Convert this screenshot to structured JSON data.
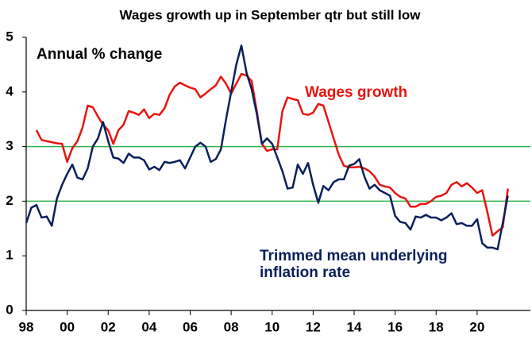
{
  "chart_data": {
    "type": "line",
    "title": "Wages growth up in September qtr but still low",
    "annotation": "Annual % change",
    "xlim": [
      1998,
      2022.6
    ],
    "xticks": [
      {
        "value": 1998,
        "label": "98"
      },
      {
        "value": 2000,
        "label": "00"
      },
      {
        "value": 2002,
        "label": "02"
      },
      {
        "value": 2004,
        "label": "04"
      },
      {
        "value": 2006,
        "label": "06"
      },
      {
        "value": 2008,
        "label": "08"
      },
      {
        "value": 2010,
        "label": "10"
      },
      {
        "value": 2012,
        "label": "12"
      },
      {
        "value": 2014,
        "label": "14"
      },
      {
        "value": 2016,
        "label": "16"
      },
      {
        "value": 2018,
        "label": "18"
      },
      {
        "value": 2020,
        "label": "20"
      }
    ],
    "ylim": [
      0,
      5
    ],
    "yticks": [
      0,
      1,
      2,
      3,
      4,
      5
    ],
    "reference_lines": [
      3,
      2
    ],
    "reference_color": "#2db34a",
    "series": [
      {
        "name": "Wages growth",
        "color": "#e8140f",
        "x": [
          1998.5,
          1998.75,
          1999,
          1999.25,
          1999.5,
          1999.75,
          2000,
          2000.25,
          2000.5,
          2000.75,
          2001,
          2001.25,
          2001.5,
          2001.75,
          2002,
          2002.25,
          2002.5,
          2002.75,
          2003,
          2003.25,
          2003.5,
          2003.75,
          2004,
          2004.25,
          2004.5,
          2004.75,
          2005,
          2005.25,
          2005.5,
          2005.75,
          2006,
          2006.25,
          2006.5,
          2006.75,
          2007,
          2007.25,
          2007.5,
          2007.75,
          2008,
          2008.25,
          2008.5,
          2008.75,
          2009,
          2009.25,
          2009.5,
          2009.75,
          2010,
          2010.25,
          2010.5,
          2010.75,
          2011,
          2011.25,
          2011.5,
          2011.75,
          2012,
          2012.25,
          2012.5,
          2012.75,
          2013,
          2013.25,
          2013.5,
          2013.75,
          2014,
          2014.25,
          2014.5,
          2014.75,
          2015,
          2015.25,
          2015.5,
          2015.75,
          2016,
          2016.25,
          2016.5,
          2016.75,
          2017,
          2017.25,
          2017.5,
          2017.75,
          2018,
          2018.25,
          2018.5,
          2018.75,
          2019,
          2019.25,
          2019.5,
          2019.75,
          2020,
          2020.25,
          2020.5,
          2020.75,
          2021,
          2021.25,
          2021.5
        ],
        "values": [
          3.3,
          3.12,
          3.1,
          3.08,
          3.06,
          3.05,
          2.72,
          2.97,
          3.1,
          3.35,
          3.75,
          3.72,
          3.55,
          3.4,
          3.3,
          3.05,
          3.3,
          3.4,
          3.65,
          3.62,
          3.58,
          3.68,
          3.52,
          3.6,
          3.58,
          3.7,
          3.95,
          4.1,
          4.17,
          4.12,
          4.08,
          4.05,
          3.9,
          3.97,
          4.05,
          4.12,
          4.28,
          4.15,
          3.97,
          4.15,
          4.33,
          4.3,
          4.2,
          3.65,
          3.05,
          2.92,
          2.95,
          2.95,
          3.65,
          3.9,
          3.87,
          3.85,
          3.6,
          3.58,
          3.62,
          3.78,
          3.75,
          3.45,
          3.15,
          2.85,
          2.65,
          2.62,
          2.62,
          2.63,
          2.6,
          2.55,
          2.45,
          2.3,
          2.27,
          2.25,
          2.15,
          2.08,
          2.05,
          1.9,
          1.9,
          1.95,
          1.95,
          2.0,
          2.08,
          2.1,
          2.15,
          2.3,
          2.35,
          2.27,
          2.33,
          2.25,
          2.15,
          2.2,
          1.8,
          1.37,
          1.45,
          1.52,
          2.23
        ]
      },
      {
        "name": "Trimmed mean underlying inflation rate",
        "color": "#0a1f5c",
        "x": [
          1998,
          1998.25,
          1998.5,
          1998.75,
          1999,
          1999.25,
          1999.5,
          1999.75,
          2000,
          2000.25,
          2000.5,
          2000.75,
          2001,
          2001.25,
          2001.5,
          2001.75,
          2002,
          2002.25,
          2002.5,
          2002.75,
          2003,
          2003.25,
          2003.5,
          2003.75,
          2004,
          2004.25,
          2004.5,
          2004.75,
          2005,
          2005.25,
          2005.5,
          2005.75,
          2006,
          2006.25,
          2006.5,
          2006.75,
          2007,
          2007.25,
          2007.5,
          2007.75,
          2008,
          2008.25,
          2008.5,
          2008.75,
          2009,
          2009.25,
          2009.5,
          2009.75,
          2010,
          2010.25,
          2010.5,
          2010.75,
          2011,
          2011.25,
          2011.5,
          2011.75,
          2012,
          2012.25,
          2012.5,
          2012.75,
          2013,
          2013.25,
          2013.5,
          2013.75,
          2014,
          2014.25,
          2014.5,
          2014.75,
          2015,
          2015.25,
          2015.5,
          2015.75,
          2016,
          2016.25,
          2016.5,
          2016.75,
          2017,
          2017.25,
          2017.5,
          2017.75,
          2018,
          2018.25,
          2018.5,
          2018.75,
          2019,
          2019.25,
          2019.5,
          2019.75,
          2020,
          2020.25,
          2020.5,
          2020.75,
          2021,
          2021.25,
          2021.5
        ],
        "values": [
          1.6,
          1.88,
          1.93,
          1.7,
          1.72,
          1.55,
          2.05,
          2.3,
          2.5,
          2.67,
          2.43,
          2.4,
          2.6,
          3.0,
          3.15,
          3.45,
          3.1,
          2.8,
          2.78,
          2.7,
          2.87,
          2.8,
          2.8,
          2.75,
          2.58,
          2.63,
          2.57,
          2.72,
          2.7,
          2.72,
          2.75,
          2.6,
          2.8,
          3.0,
          3.07,
          3.0,
          2.72,
          2.77,
          2.95,
          3.5,
          4.0,
          4.5,
          4.85,
          4.35,
          4.05,
          3.6,
          3.05,
          3.15,
          3.05,
          2.8,
          2.55,
          2.23,
          2.25,
          2.67,
          2.5,
          2.7,
          2.3,
          1.97,
          2.28,
          2.2,
          2.35,
          2.4,
          2.4,
          2.65,
          2.68,
          2.77,
          2.45,
          2.23,
          2.3,
          2.2,
          2.15,
          2.1,
          1.73,
          1.62,
          1.6,
          1.48,
          1.72,
          1.7,
          1.75,
          1.7,
          1.7,
          1.65,
          1.7,
          1.78,
          1.58,
          1.6,
          1.55,
          1.55,
          1.67,
          1.23,
          1.15,
          1.15,
          1.12,
          1.6,
          2.1
        ]
      }
    ]
  }
}
